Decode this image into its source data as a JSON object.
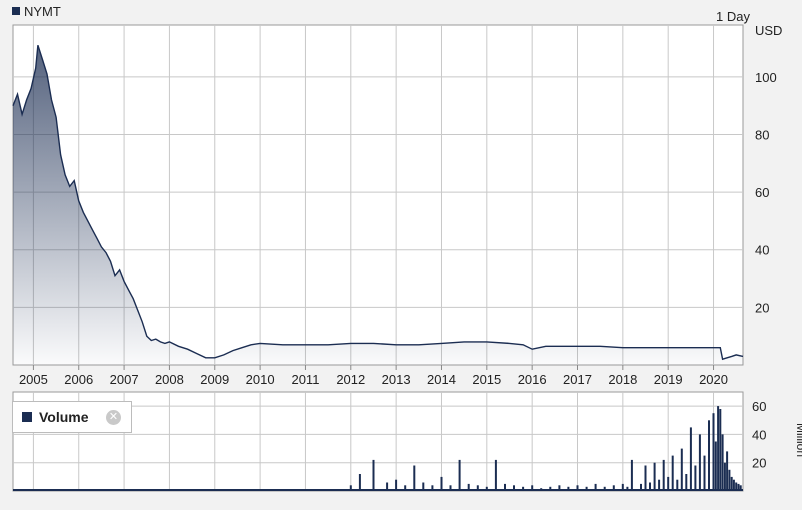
{
  "colors": {
    "series": "#1b2d52",
    "grid": "#c8c8c8",
    "plot_bg": "#ffffff",
    "page_bg": "#f2f2f2"
  },
  "header": {
    "ticker": "NYMT",
    "interval": "1 Day"
  },
  "volume_panel": {
    "legend_label": "Volume",
    "close_icon": "close-circle-icon"
  },
  "chart_data": [
    {
      "type": "area",
      "series": [
        {
          "name": "NYMT"
        }
      ],
      "ylabel": "USD",
      "xlabel": "",
      "xlim": [
        2004.55,
        2020.65
      ],
      "ylim": [
        0,
        118
      ],
      "xticks": [
        "2005",
        "2006",
        "2007",
        "2008",
        "2009",
        "2010",
        "2011",
        "2012",
        "2013",
        "2014",
        "2015",
        "2016",
        "2017",
        "2018",
        "2019",
        "2020"
      ],
      "yticks": [
        20,
        40,
        60,
        80,
        100
      ],
      "grid": true,
      "x": [
        2004.55,
        2004.65,
        2004.75,
        2004.85,
        2004.95,
        2005.05,
        2005.1,
        2005.2,
        2005.3,
        2005.4,
        2005.5,
        2005.6,
        2005.7,
        2005.8,
        2005.9,
        2006.0,
        2006.1,
        2006.2,
        2006.3,
        2006.4,
        2006.5,
        2006.6,
        2006.7,
        2006.8,
        2006.9,
        2007.0,
        2007.1,
        2007.2,
        2007.3,
        2007.4,
        2007.5,
        2007.6,
        2007.7,
        2007.8,
        2007.9,
        2008.0,
        2008.2,
        2008.4,
        2008.6,
        2008.8,
        2009.0,
        2009.2,
        2009.4,
        2009.6,
        2009.8,
        2010.0,
        2010.5,
        2011.0,
        2011.5,
        2012.0,
        2012.5,
        2013.0,
        2013.5,
        2014.0,
        2014.5,
        2015.0,
        2015.5,
        2015.8,
        2016.0,
        2016.3,
        2016.6,
        2017.0,
        2017.5,
        2018.0,
        2018.5,
        2019.0,
        2019.5,
        2020.0,
        2020.15,
        2020.2,
        2020.3,
        2020.4,
        2020.5,
        2020.65
      ],
      "y": [
        90,
        94,
        87,
        92,
        96,
        103,
        111,
        106,
        101,
        92,
        86,
        73,
        66,
        62,
        64,
        57,
        53,
        50,
        47,
        44,
        41,
        39,
        36,
        31,
        33,
        29,
        26,
        23,
        19,
        15,
        10,
        8.5,
        9,
        8,
        7.5,
        8,
        6.5,
        5.5,
        4,
        2.5,
        2.5,
        3.5,
        5,
        6,
        7,
        7.5,
        7,
        7,
        7,
        7.5,
        7.5,
        7,
        7,
        7.5,
        8,
        8,
        7.5,
        7,
        5.5,
        6.5,
        6.5,
        6.5,
        6.5,
        6,
        6,
        6,
        6,
        6,
        6,
        2,
        2.5,
        3,
        3.5,
        3
      ]
    },
    {
      "type": "bar",
      "series": [
        {
          "name": "Volume"
        }
      ],
      "ylabel": "Million",
      "xlabel": "",
      "ylim": [
        0,
        70
      ],
      "yticks": [
        20,
        40,
        60
      ],
      "grid": true,
      "x": [
        2012.0,
        2012.2,
        2012.5,
        2012.8,
        2013.0,
        2013.2,
        2013.4,
        2013.6,
        2013.8,
        2014.0,
        2014.2,
        2014.4,
        2014.6,
        2014.8,
        2015.0,
        2015.2,
        2015.4,
        2015.6,
        2015.8,
        2016.0,
        2016.2,
        2016.4,
        2016.6,
        2016.8,
        2017.0,
        2017.2,
        2017.4,
        2017.6,
        2017.8,
        2018.0,
        2018.1,
        2018.2,
        2018.4,
        2018.5,
        2018.6,
        2018.7,
        2018.8,
        2018.9,
        2019.0,
        2019.1,
        2019.2,
        2019.3,
        2019.4,
        2019.5,
        2019.6,
        2019.7,
        2019.8,
        2019.9,
        2020.0,
        2020.05,
        2020.1,
        2020.15,
        2020.2,
        2020.25,
        2020.3,
        2020.35,
        2020.4,
        2020.45,
        2020.5,
        2020.55,
        2020.6
      ],
      "y": [
        4,
        12,
        22,
        6,
        8,
        4,
        18,
        6,
        4,
        10,
        4,
        22,
        5,
        4,
        3,
        22,
        5,
        4,
        3,
        4,
        2,
        3,
        4,
        3,
        4,
        3,
        5,
        3,
        4,
        5,
        3,
        22,
        5,
        18,
        6,
        20,
        8,
        22,
        10,
        25,
        8,
        30,
        12,
        45,
        18,
        40,
        25,
        50,
        55,
        35,
        60,
        58,
        40,
        20,
        28,
        15,
        10,
        8,
        6,
        5,
        4
      ]
    }
  ]
}
